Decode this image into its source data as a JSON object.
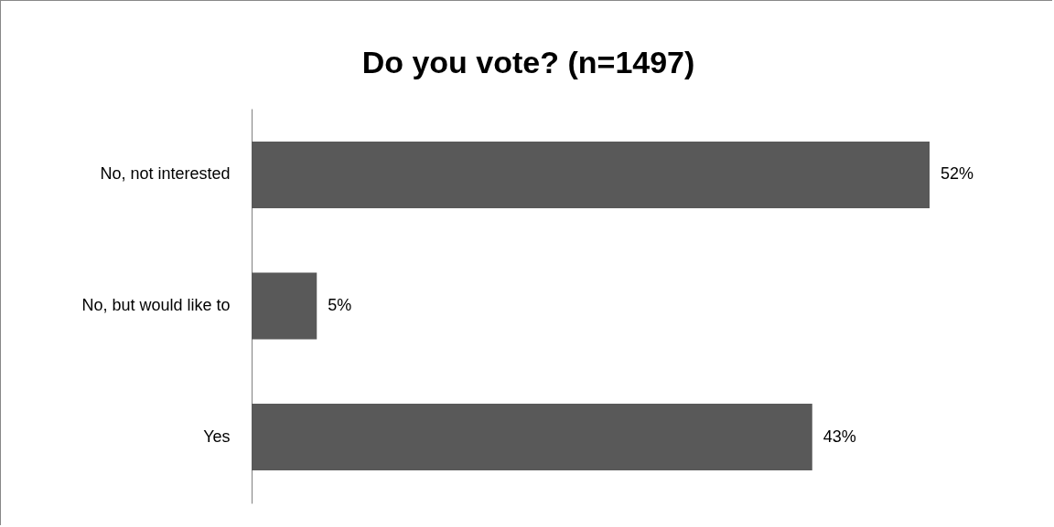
{
  "chart_data": {
    "type": "bar",
    "orientation": "horizontal",
    "title": "Do you vote? (n=1497)",
    "categories": [
      "No, not interested",
      "No, but would like to",
      "Yes"
    ],
    "values": [
      52,
      5,
      43
    ],
    "value_labels": [
      "52%",
      "5%",
      "43%"
    ],
    "color": "#595959",
    "grid": false
  }
}
